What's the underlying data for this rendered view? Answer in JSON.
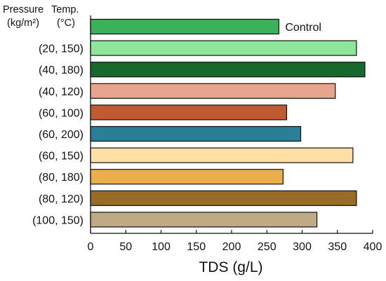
{
  "header": {
    "pressure_label": "Pressure",
    "temp_label": "Temp.",
    "pressure_unit": "(kg/m²)",
    "temp_unit": "(°C)"
  },
  "chart_data": {
    "type": "bar",
    "orientation": "horizontal",
    "categories": [
      "",
      "(20, 150)",
      "(40, 180)",
      "(40, 120)",
      "(60, 100)",
      "(60, 200)",
      "(60, 150)",
      "(80, 180)",
      "(80, 120)",
      "(100, 150)"
    ],
    "values": [
      267,
      377,
      389,
      347,
      278,
      298,
      372,
      273,
      377,
      321
    ],
    "colors": [
      "#3bb15a",
      "#8ee59c",
      "#17682d",
      "#e6a58c",
      "#c05a32",
      "#2a7e96",
      "#fedfa5",
      "#e9af4c",
      "#966c27",
      "#c0aa85"
    ],
    "annotations": [
      {
        "category_index": 0,
        "text": "Control"
      }
    ],
    "xlabel": "TDS (g/L)",
    "xlim": [
      0,
      400
    ],
    "xticks": [
      0,
      50,
      100,
      150,
      200,
      250,
      300,
      350,
      400
    ],
    "grid": false
  }
}
